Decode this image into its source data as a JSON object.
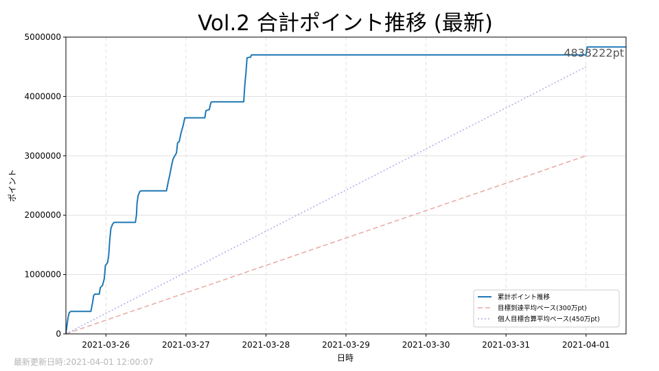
{
  "chart_data": {
    "type": "line",
    "title": "Vol.2 合計ポイント推移 (最新)",
    "xlabel": "日時",
    "ylabel": "ポイント",
    "x_start": "2021-03-25T12:00",
    "x_end": "2021-04-01T12:00",
    "xlim": [
      "2021-03-25T12:00",
      "2021-04-01T12:00"
    ],
    "ylim": [
      0,
      5000000
    ],
    "x_tick_labels": [
      "2021-03-26",
      "2021-03-27",
      "2021-03-28",
      "2021-03-29",
      "2021-03-30",
      "2021-03-31",
      "2021-04-01"
    ],
    "y_tick_labels": [
      "0",
      "1000000",
      "2000000",
      "3000000",
      "4000000",
      "5000000"
    ],
    "y_ticks": [
      0,
      1000000,
      2000000,
      3000000,
      4000000,
      5000000
    ],
    "grid": true,
    "legend_position": "lower right",
    "final_value_label": "4833222pt",
    "series": [
      {
        "name": "累計ポイント推移",
        "color": "#1f77b4",
        "style": "solid",
        "points": [
          [
            "2021-03-25T12:00",
            0
          ],
          [
            "2021-03-25T12:20",
            150000
          ],
          [
            "2021-03-25T12:40",
            280000
          ],
          [
            "2021-03-25T13:00",
            360000
          ],
          [
            "2021-03-25T13:30",
            380000
          ],
          [
            "2021-03-25T19:30",
            380000
          ],
          [
            "2021-03-25T20:00",
            530000
          ],
          [
            "2021-03-25T20:20",
            650000
          ],
          [
            "2021-03-25T20:40",
            670000
          ],
          [
            "2021-03-25T22:00",
            670000
          ],
          [
            "2021-03-25T22:20",
            780000
          ],
          [
            "2021-03-25T23:00",
            820000
          ],
          [
            "2021-03-25T23:30",
            930000
          ],
          [
            "2021-03-25T23:50",
            1150000
          ],
          [
            "2021-03-26T00:30",
            1200000
          ],
          [
            "2021-03-26T00:50",
            1320000
          ],
          [
            "2021-03-26T01:10",
            1600000
          ],
          [
            "2021-03-26T01:30",
            1780000
          ],
          [
            "2021-03-26T02:00",
            1850000
          ],
          [
            "2021-03-26T02:30",
            1880000
          ],
          [
            "2021-03-26T08:50",
            1880000
          ],
          [
            "2021-03-26T09:10",
            2000000
          ],
          [
            "2021-03-26T09:20",
            2200000
          ],
          [
            "2021-03-26T09:40",
            2330000
          ],
          [
            "2021-03-26T10:10",
            2400000
          ],
          [
            "2021-03-26T10:40",
            2410000
          ],
          [
            "2021-03-26T18:10",
            2410000
          ],
          [
            "2021-03-26T18:40",
            2560000
          ],
          [
            "2021-03-26T19:10",
            2680000
          ],
          [
            "2021-03-26T19:40",
            2830000
          ],
          [
            "2021-03-26T20:10",
            2950000
          ],
          [
            "2021-03-26T20:40",
            3000000
          ],
          [
            "2021-03-26T21:10",
            3050000
          ],
          [
            "2021-03-26T21:30",
            3220000
          ],
          [
            "2021-03-26T22:00",
            3240000
          ],
          [
            "2021-03-26T22:30",
            3380000
          ],
          [
            "2021-03-26T23:10",
            3510000
          ],
          [
            "2021-03-26T23:40",
            3640000
          ],
          [
            "2021-03-27T05:40",
            3640000
          ],
          [
            "2021-03-27T06:00",
            3760000
          ],
          [
            "2021-03-27T07:00",
            3780000
          ],
          [
            "2021-03-27T07:30",
            3900000
          ],
          [
            "2021-03-27T07:50",
            3910000
          ],
          [
            "2021-03-27T17:20",
            3910000
          ],
          [
            "2021-03-27T17:40",
            4200000
          ],
          [
            "2021-03-27T18:00",
            4400000
          ],
          [
            "2021-03-27T18:20",
            4650000
          ],
          [
            "2021-03-27T19:00",
            4660000
          ],
          [
            "2021-03-27T19:20",
            4660000
          ],
          [
            "2021-03-27T19:40",
            4700000
          ],
          [
            "2021-04-01T00:00",
            4700000
          ],
          [
            "2021-04-01T00:20",
            4833222
          ],
          [
            "2021-04-01T12:00",
            4833222
          ]
        ]
      },
      {
        "name": "目標到達平均ペース(300万pt)",
        "color": "#e8a8a2",
        "style": "dashed",
        "points": [
          [
            "2021-03-25T12:00",
            0
          ],
          [
            "2021-04-01T00:00",
            3000000
          ]
        ]
      },
      {
        "name": "個人目標合算平均ペース(450万pt)",
        "color": "#a9aae6",
        "style": "dotted",
        "points": [
          [
            "2021-03-25T12:00",
            0
          ],
          [
            "2021-04-01T00:00",
            4500000
          ]
        ]
      }
    ]
  },
  "footer": {
    "label": "最新更新日時:",
    "timestamp": "2021-04-01 12:00:07"
  }
}
